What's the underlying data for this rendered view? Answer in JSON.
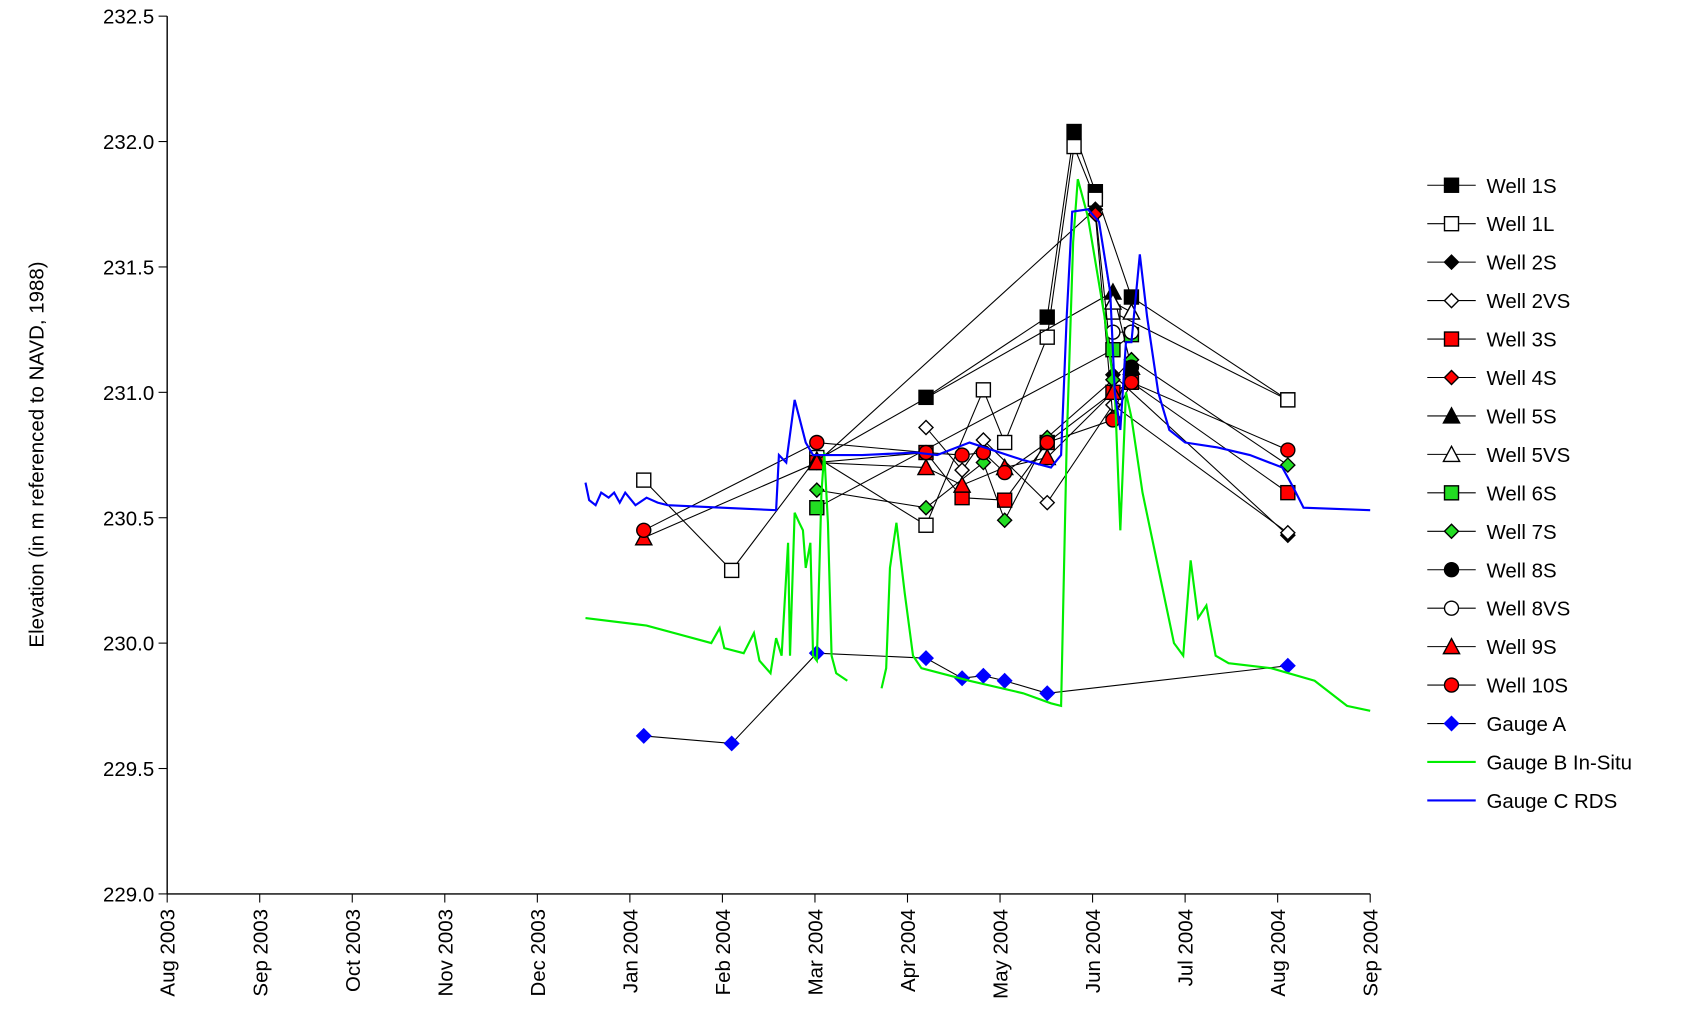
{
  "chart_data": {
    "type": "line",
    "y_label": "Elevation (in m referenced to NAVD, 1988)",
    "ylim": [
      229.0,
      232.5
    ],
    "yticks": [
      {
        "value": 229.0,
        "label": "229.0"
      },
      229.5,
      {
        "value": 230.0,
        "label": "230.0"
      },
      230.5,
      {
        "value": 231.0,
        "label": "231.0"
      },
      231.5,
      {
        "value": 232.0,
        "label": "232.0"
      },
      232.5
    ],
    "xlim": [
      0,
      13
    ],
    "xticks": [
      {
        "value": 0,
        "label": "Aug 2003"
      },
      {
        "value": 1,
        "label": "Sep 2003"
      },
      {
        "value": 2,
        "label": "Oct 2003"
      },
      {
        "value": 3,
        "label": "Nov 2003"
      },
      {
        "value": 4,
        "label": "Dec 2003"
      },
      {
        "value": 5,
        "label": "Jan 2004"
      },
      {
        "value": 6,
        "label": "Feb 2004"
      },
      {
        "value": 7,
        "label": "Mar 2004"
      },
      {
        "value": 8,
        "label": "Apr 2004"
      },
      {
        "value": 9,
        "label": "May 2004"
      },
      {
        "value": 10,
        "label": "Jun 2004"
      },
      {
        "value": 11,
        "label": "Jul 2004"
      },
      {
        "value": 12,
        "label": "Aug 2004"
      },
      {
        "value": 13,
        "label": "Sep 2004"
      }
    ],
    "legend": "right",
    "series": [
      {
        "name": "Well 1S",
        "marker": "square",
        "color": "#000000",
        "x": [
          8.2,
          9.51,
          9.8,
          10.03,
          10.42,
          12.11
        ],
        "values": [
          230.98,
          231.3,
          232.04,
          231.8,
          231.38,
          230.97
        ]
      },
      {
        "name": "Well 1L",
        "marker": "square",
        "color": "#ffffff",
        "x": [
          5.15,
          6.1,
          7.02,
          8.2,
          8.82,
          9.05,
          9.51,
          9.8,
          10.03,
          10.22,
          12.11
        ],
        "values": [
          230.65,
          230.29,
          230.74,
          230.47,
          231.01,
          230.8,
          231.22,
          231.98,
          231.77,
          231.32,
          230.97
        ]
      },
      {
        "name": "Well 2S",
        "marker": "diamond",
        "color": "#000000",
        "x": [
          7.02,
          10.03,
          10.22,
          12.11
        ],
        "values": [
          230.72,
          231.73,
          231.07,
          230.43
        ]
      },
      {
        "name": "Well 2VS",
        "marker": "diamond",
        "color": "#ffffff",
        "x": [
          8.2,
          8.59,
          8.82,
          9.51,
          10.22,
          12.11
        ],
        "values": [
          230.86,
          230.69,
          230.81,
          230.56,
          230.95,
          230.44
        ]
      },
      {
        "name": "Well 3S",
        "marker": "square",
        "color": "#ff0000",
        "x": [
          7.02,
          8.2,
          8.59,
          9.05,
          9.51,
          10.22,
          10.42,
          12.11
        ],
        "values": [
          230.72,
          230.76,
          230.58,
          230.57,
          230.8,
          231.0,
          231.04,
          230.6
        ]
      },
      {
        "name": "Well 4S",
        "marker": "diamond",
        "color": "#ff0000",
        "x": [
          10.03,
          10.22,
          10.42
        ],
        "values": [
          231.71,
          230.9,
          231.13
        ]
      },
      {
        "name": "Well 5S",
        "marker": "triangle",
        "color": "#000000",
        "x": [
          7.02,
          10.22,
          10.42
        ],
        "values": [
          230.73,
          231.4,
          231.1
        ]
      },
      {
        "name": "Well 5VS",
        "marker": "triangle",
        "color": "#ffffff",
        "x": [
          10.22,
          10.42
        ],
        "values": [
          231.36,
          231.32
        ]
      },
      {
        "name": "Well 6S",
        "marker": "square",
        "color": "#22dd22",
        "x": [
          7.02,
          10.22,
          10.42
        ],
        "values": [
          230.54,
          231.17,
          231.23
        ]
      },
      {
        "name": "Well 7S",
        "marker": "diamond",
        "color": "#22dd22",
        "x": [
          7.02,
          8.2,
          8.82,
          9.05,
          9.51,
          10.22,
          10.42,
          12.11
        ],
        "values": [
          230.61,
          230.54,
          230.72,
          230.49,
          230.82,
          231.05,
          231.13,
          230.71
        ]
      },
      {
        "name": "Well 8S",
        "marker": "circle",
        "color": "#000000",
        "x": [
          10.42
        ],
        "values": [
          231.1
        ]
      },
      {
        "name": "Well 8VS",
        "marker": "circle",
        "color": "#ffffff",
        "x": [
          10.22,
          10.42
        ],
        "values": [
          231.24,
          231.24
        ]
      },
      {
        "name": "Well 9S",
        "marker": "triangle",
        "color": "#ff0000",
        "x": [
          5.15,
          7.02,
          8.2,
          8.59,
          9.05,
          9.51,
          10.22
        ],
        "values": [
          230.42,
          230.72,
          230.7,
          230.63,
          230.7,
          230.74,
          231.0
        ]
      },
      {
        "name": "Well 10S",
        "marker": "circle",
        "color": "#ff0000",
        "x": [
          5.15,
          7.02,
          8.2,
          8.59,
          8.82,
          9.05,
          9.51,
          10.22,
          10.42,
          12.11
        ],
        "values": [
          230.45,
          230.8,
          230.76,
          230.75,
          230.76,
          230.68,
          230.8,
          230.89,
          231.04,
          230.77
        ]
      },
      {
        "name": "Gauge A",
        "marker": "diamond",
        "color": "#0000ff",
        "x": [
          5.15,
          6.1,
          7.02,
          8.2,
          8.59,
          8.82,
          9.05,
          9.51,
          12.11
        ],
        "values": [
          229.63,
          229.6,
          229.96,
          229.94,
          229.86,
          229.87,
          229.85,
          229.8,
          229.91
        ]
      },
      {
        "name": "Gauge B In-Situ",
        "marker": "none",
        "color": "#00ee00",
        "x": [
          4.52,
          5.18,
          5.88,
          5.97,
          6.02,
          6.23,
          6.34,
          6.4,
          6.52,
          6.58,
          6.64,
          6.71,
          6.73,
          6.78,
          6.83,
          6.87,
          6.9,
          6.95,
          6.98,
          7.02,
          7.07,
          7.1,
          7.14,
          7.18,
          7.23,
          7.35,
          7.5,
          7.72,
          7.77,
          7.81,
          7.88,
          7.97,
          8.06,
          8.15,
          8.67,
          9.25,
          9.55,
          9.66,
          9.72,
          9.79,
          9.84,
          9.95,
          10.13,
          10.24,
          10.3,
          10.36,
          10.42,
          10.54,
          10.71,
          10.88,
          10.98,
          11.06,
          11.14,
          11.23,
          11.33,
          11.47,
          11.93,
          12.4,
          12.75,
          13.0
        ],
        "values": [
          230.1,
          230.07,
          230.0,
          230.06,
          229.98,
          229.96,
          230.04,
          229.93,
          229.88,
          230.02,
          229.95,
          230.4,
          229.95,
          230.52,
          230.48,
          230.45,
          230.3,
          230.4,
          229.95,
          229.93,
          230.6,
          230.76,
          230.48,
          229.95,
          229.88,
          229.85,
          null,
          229.82,
          229.9,
          230.3,
          230.48,
          230.2,
          229.95,
          229.9,
          229.85,
          229.8,
          229.76,
          229.75,
          230.8,
          231.6,
          231.85,
          231.7,
          231.3,
          231.0,
          230.45,
          231.0,
          230.9,
          230.6,
          230.3,
          230.0,
          229.95,
          230.33,
          230.1,
          230.15,
          229.95,
          229.92,
          229.9,
          229.85,
          229.75,
          229.73
        ]
      },
      {
        "name": "Gauge C RDS",
        "marker": "none",
        "color": "#0000ff",
        "x": [
          4.52,
          4.56,
          4.63,
          4.69,
          4.77,
          4.83,
          4.89,
          4.95,
          5.06,
          5.18,
          5.3,
          5.41,
          6.58,
          6.61,
          6.69,
          6.78,
          6.83,
          6.9,
          6.98,
          7.51,
          8.09,
          8.32,
          8.67,
          9.25,
          9.55,
          9.66,
          9.72,
          9.78,
          9.95,
          10.07,
          10.19,
          10.24,
          10.3,
          10.36,
          10.42,
          10.51,
          10.59,
          10.71,
          10.83,
          11.0,
          11.35,
          11.7,
          12.05,
          12.17,
          12.28,
          13.0
        ],
        "values": [
          230.64,
          230.57,
          230.55,
          230.6,
          230.58,
          230.6,
          230.56,
          230.6,
          230.55,
          230.58,
          230.56,
          230.55,
          230.53,
          230.75,
          230.72,
          230.97,
          230.9,
          230.8,
          230.75,
          230.75,
          230.76,
          230.75,
          230.8,
          230.73,
          230.7,
          230.75,
          231.3,
          231.72,
          231.73,
          231.68,
          231.4,
          231.0,
          230.85,
          231.2,
          231.2,
          231.55,
          231.3,
          231.0,
          230.85,
          230.8,
          230.78,
          230.75,
          230.7,
          230.62,
          230.54,
          230.53
        ]
      }
    ]
  }
}
